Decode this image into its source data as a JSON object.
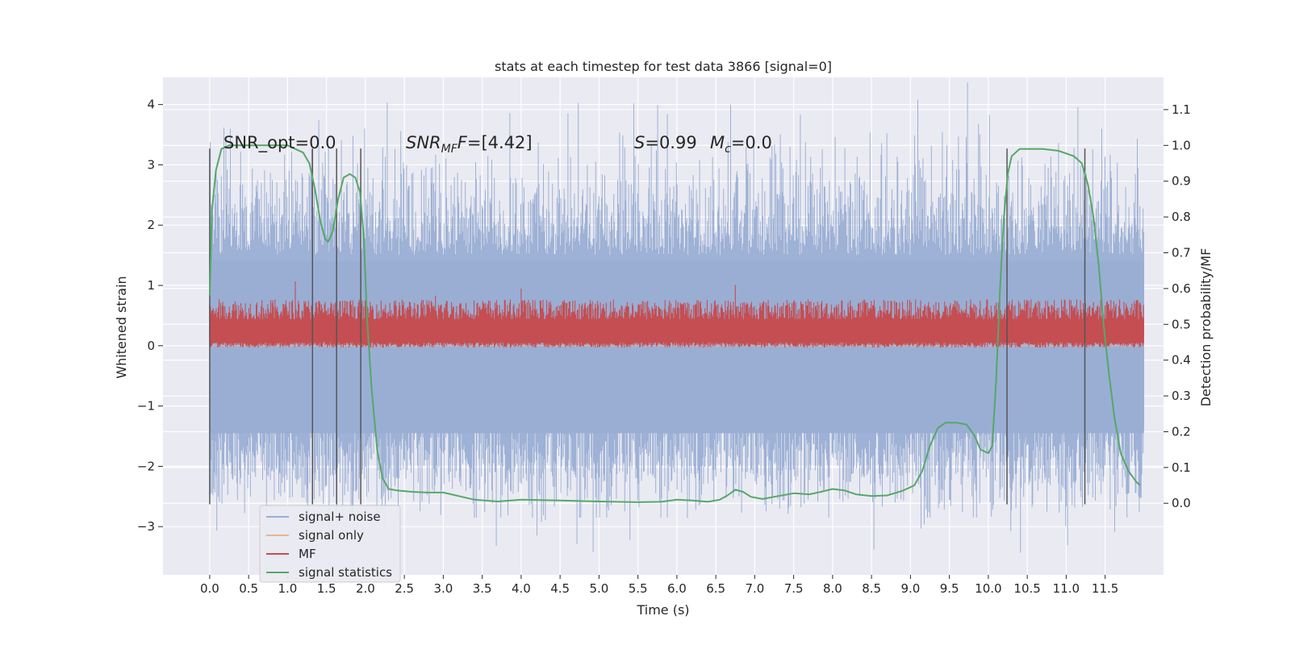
{
  "chart_data": {
    "type": "line",
    "title": "stats at each timestep for test data 3866 [signal=0]",
    "xlabel": "Time (s)",
    "ylabel": "Whitened strain",
    "y2label": "Detection probability/MF",
    "xlim": [
      -0.6,
      12.25
    ],
    "ylim": [
      -3.8,
      4.45
    ],
    "y2lim": [
      -0.2,
      1.19
    ],
    "xticks": [
      0.0,
      0.5,
      1.0,
      1.5,
      2.0,
      2.5,
      3.0,
      3.5,
      4.0,
      4.5,
      5.0,
      5.5,
      6.0,
      6.5,
      7.0,
      7.5,
      8.0,
      8.5,
      9.0,
      9.5,
      10.0,
      10.5,
      11.0,
      11.5
    ],
    "xtick_labels": [
      "0.0",
      "0.5",
      "1.0",
      "1.5",
      "2.0",
      "2.5",
      "3.0",
      "3.5",
      "4.0",
      "4.5",
      "5.0",
      "5.5",
      "6.0",
      "6.5",
      "7.0",
      "7.5",
      "8.0",
      "8.5",
      "9.0",
      "9.5",
      "10.0",
      "10.5",
      "11.0",
      "11.5"
    ],
    "yticks": [
      -3,
      -2,
      -1,
      0,
      1,
      2,
      3,
      4
    ],
    "ytick_labels": [
      "−3",
      "−2",
      "−1",
      "0",
      "1",
      "2",
      "3",
      "4"
    ],
    "y2ticks": [
      0.0,
      0.1,
      0.2,
      0.3,
      0.4,
      0.5,
      0.6,
      0.7,
      0.8,
      0.9,
      1.0,
      1.1
    ],
    "y2tick_labels": [
      "0.0",
      "0.1",
      "0.2",
      "0.3",
      "0.4",
      "0.5",
      "0.6",
      "0.7",
      "0.8",
      "0.9",
      "1.0",
      "1.1"
    ],
    "grid": true,
    "legend_position": "lower-left",
    "annotations": {
      "snr_opt": "SNR_opt=0.0",
      "snr_mf_sym": "SNR",
      "snr_mf_sub": "MF",
      "snr_mf_rest": "=[4.42]",
      "s_sym": "S",
      "s_rest": "=0.99",
      "mc_sym": "M",
      "mc_sub": "c",
      "mc_rest": "=0.0"
    },
    "vertical_markers": [
      0.0,
      1.32,
      1.63,
      1.94,
      10.24,
      11.24
    ],
    "series": [
      {
        "name": "signal+ noise",
        "color": "#9aaed4",
        "kind": "noise",
        "x_range": [
          0.0,
          12.0
        ],
        "typical_envelope": [
          -1.8,
          2.4
        ],
        "extreme_range": [
          -3.45,
          4.1
        ]
      },
      {
        "name": "signal only",
        "color": "#e8b49a",
        "kind": "flat",
        "x_range": [
          0.0,
          12.0
        ],
        "value": 0.0
      },
      {
        "name": "MF",
        "color": "#c44e52",
        "kind": "band",
        "axis": "y2",
        "x_range": [
          0.0,
          12.0
        ],
        "center": 0.5,
        "band": [
          0.45,
          0.56
        ],
        "spikes": [
          [
            1.1,
            0.62
          ],
          [
            4.0,
            0.6
          ],
          [
            6.75,
            0.61
          ],
          [
            2.9,
            0.58
          ]
        ]
      },
      {
        "name": "signal statistics",
        "color": "#55a868",
        "kind": "line",
        "axis": "y2",
        "x": [
          0.0,
          0.03,
          0.08,
          0.15,
          0.25,
          0.4,
          0.6,
          0.8,
          1.0,
          1.1,
          1.2,
          1.28,
          1.35,
          1.42,
          1.48,
          1.52,
          1.58,
          1.65,
          1.72,
          1.8,
          1.87,
          1.93,
          1.98,
          2.02,
          2.08,
          2.15,
          2.22,
          2.3,
          2.4,
          2.6,
          2.8,
          3.0,
          3.2,
          3.4,
          3.7,
          4.0,
          4.5,
          5.0,
          5.5,
          5.8,
          6.0,
          6.2,
          6.4,
          6.55,
          6.65,
          6.75,
          6.85,
          6.95,
          7.1,
          7.3,
          7.5,
          7.7,
          7.85,
          8.0,
          8.15,
          8.3,
          8.5,
          8.7,
          8.9,
          9.05,
          9.15,
          9.25,
          9.35,
          9.45,
          9.6,
          9.72,
          9.82,
          9.9,
          10.0,
          10.05,
          10.1,
          10.15,
          10.2,
          10.25,
          10.3,
          10.4,
          10.5,
          10.7,
          10.9,
          11.1,
          11.2,
          11.28,
          11.35,
          11.42,
          11.48,
          11.55,
          11.62,
          11.7,
          11.8,
          11.9,
          11.95
        ],
        "values": [
          0.58,
          0.82,
          0.93,
          0.99,
          1.0,
          1.0,
          1.0,
          1.0,
          1.0,
          0.99,
          0.98,
          0.95,
          0.88,
          0.79,
          0.74,
          0.73,
          0.76,
          0.85,
          0.91,
          0.92,
          0.91,
          0.87,
          0.74,
          0.52,
          0.32,
          0.15,
          0.07,
          0.04,
          0.036,
          0.032,
          0.03,
          0.03,
          0.02,
          0.01,
          0.005,
          0.01,
          0.008,
          0.005,
          0.003,
          0.004,
          0.01,
          0.008,
          0.004,
          0.01,
          0.022,
          0.038,
          0.032,
          0.018,
          0.012,
          0.02,
          0.028,
          0.025,
          0.032,
          0.04,
          0.036,
          0.025,
          0.02,
          0.022,
          0.035,
          0.05,
          0.09,
          0.16,
          0.21,
          0.225,
          0.225,
          0.22,
          0.19,
          0.15,
          0.14,
          0.16,
          0.34,
          0.6,
          0.8,
          0.92,
          0.97,
          0.99,
          0.99,
          0.99,
          0.985,
          0.97,
          0.95,
          0.89,
          0.8,
          0.66,
          0.5,
          0.36,
          0.24,
          0.14,
          0.09,
          0.06,
          0.05
        ]
      }
    ]
  }
}
